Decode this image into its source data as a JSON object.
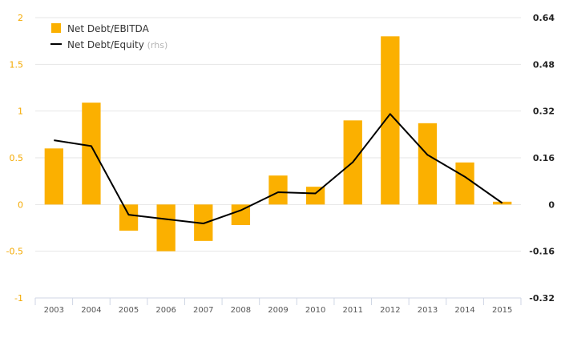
{
  "chart_data": {
    "type": "bar",
    "categories": [
      "2003",
      "2004",
      "2005",
      "2006",
      "2007",
      "2008",
      "2009",
      "2010",
      "2011",
      "2012",
      "2013",
      "2014",
      "2015"
    ],
    "series": [
      {
        "name": "Net Debt/EBITDA",
        "type": "bar",
        "axis": "left",
        "color": "#FBB000",
        "values": [
          0.6,
          1.09,
          -0.28,
          -0.5,
          -0.39,
          -0.22,
          0.31,
          0.19,
          0.9,
          1.8,
          0.87,
          0.45,
          0.03
        ]
      },
      {
        "name": "Net Debt/Equity",
        "name_suffix": "(rhs)",
        "type": "line",
        "axis": "right",
        "color": "#000000",
        "values": [
          0.22,
          0.2,
          -0.035,
          -0.05,
          -0.065,
          -0.02,
          0.042,
          0.038,
          0.145,
          0.31,
          0.17,
          0.095,
          0.005
        ]
      }
    ],
    "y_left": {
      "ylim": [
        -1,
        2
      ],
      "ticks": [
        -1,
        -0.5,
        0,
        0.5,
        1,
        1.5,
        2
      ],
      "tick_labels": [
        "-1",
        "-0.5",
        "0",
        "0.5",
        "1",
        "1.5",
        "2"
      ],
      "color": "#F4A900"
    },
    "y_right": {
      "ylim": [
        -0.32,
        0.64
      ],
      "ticks": [
        -0.32,
        -0.16,
        0,
        0.16,
        0.32,
        0.48,
        0.64
      ],
      "tick_labels": [
        "-0.32",
        "-0.16",
        "0",
        "0.16",
        "0.32",
        "0.48",
        "0.64"
      ],
      "color": "#222222"
    },
    "grid": true,
    "legend": {
      "position": "top-left",
      "entries": [
        "Net Debt/EBITDA",
        "Net Debt/Equity"
      ],
      "sub": [
        "",
        "(rhs)"
      ]
    }
  }
}
